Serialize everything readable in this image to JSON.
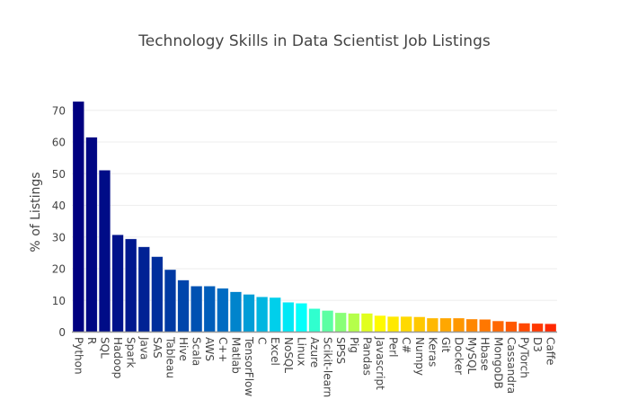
{
  "chart_data": {
    "type": "bar",
    "title": "Technology Skills in Data Scientist Job Listings",
    "xlabel": "",
    "ylabel": "% of Listings",
    "ylim": [
      0,
      75
    ],
    "yticks": [
      0,
      10,
      20,
      30,
      40,
      50,
      60,
      70
    ],
    "grid": "horizontal",
    "colorscale": [
      [
        0,
        "#000080"
      ],
      [
        0.12,
        "#001a8f"
      ],
      [
        0.3,
        "#0066c0"
      ],
      [
        0.47,
        "#00ffff"
      ],
      [
        0.63,
        "#ffff00"
      ],
      [
        0.8,
        "#ff9a00"
      ],
      [
        1,
        "#ff2800"
      ]
    ],
    "categories": [
      "Python",
      "R",
      "SQL",
      "Hadoop",
      "Spark",
      "Java",
      "SAS",
      "Tableau",
      "Hive",
      "Scala",
      "AWS",
      "C++",
      "Matlab",
      "TensorFlow",
      "C",
      "Excel",
      "NoSQL",
      "Linux",
      "Azure",
      "Scikit-learn",
      "SPSS",
      "Pig",
      "Pandas",
      "Javascript",
      "Perl",
      "C#",
      "Numpy",
      "Keras",
      "Git",
      "Docker",
      "MySQL",
      "Hbase",
      "MongoDB",
      "Cassandra",
      "PyTorch",
      "D3",
      "Caffe"
    ],
    "values": [
      72.8,
      61.5,
      51.1,
      30.7,
      29.4,
      26.9,
      23.8,
      19.7,
      16.4,
      14.5,
      14.5,
      13.8,
      12.7,
      11.9,
      11.1,
      10.9,
      9.4,
      9.1,
      7.4,
      6.8,
      6.1,
      5.9,
      5.9,
      5.2,
      4.9,
      4.9,
      4.8,
      4.4,
      4.4,
      4.4,
      4.1,
      4.0,
      3.5,
      3.3,
      2.8,
      2.7,
      2.6
    ]
  }
}
